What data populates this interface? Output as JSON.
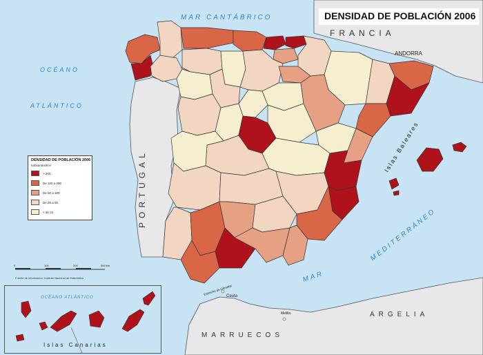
{
  "title": "DENSIDAD DE POBLACIÓN 2006",
  "colors": {
    "sea": "#c8e4f4",
    "foreign_land": "#e8e8ea",
    "cat_200": "#b0121c",
    "cat_100": "#da6648",
    "cat_50": "#e6a184",
    "cat_25": "#f3d6c2",
    "cat_24": "#f5efcf",
    "borders": "#333333"
  },
  "legend": {
    "title": "DENSIDAD DE POBLACIÓN 2006",
    "unit": "habitantes/km²",
    "items": [
      {
        "label": "> 200",
        "color": "#b0121c"
      },
      {
        "label": "De 100 a 200",
        "color": "#da6648"
      },
      {
        "label": "De 50 a 100",
        "color": "#e6a184"
      },
      {
        "label": "De 25 a 50",
        "color": "#f3d6c2"
      },
      {
        "label": "< de 24",
        "color": "#f5efcf"
      }
    ]
  },
  "labels": {
    "mar_cantabrico": "MAR CANTÁBRICO",
    "francia": "FRANCIA",
    "andorra": "ANDORRA",
    "oceano": "OCÉANO",
    "atlantico": "ATLÁNTICO",
    "portugal": "PORTUGAL",
    "islas_baleares": "Islas Baleares",
    "mar": "MAR",
    "mediterraneo": "MEDITERRÁNEO",
    "argelia": "ARGELIA",
    "marruecos": "MARRUECOS",
    "ceuta": "Ceuta",
    "melilla": "Melilla",
    "estrecho": "Estrecho de Gibraltar",
    "oceano_atlantico_canarias": "OCÉANO ATLÁNTICO",
    "islas_canarias": "Islas Canarias"
  },
  "scale": {
    "ticks": [
      "0",
      "100",
      "200",
      "300 km"
    ]
  },
  "source": "Fuente de información: Instituto Nacional de Estadística"
}
